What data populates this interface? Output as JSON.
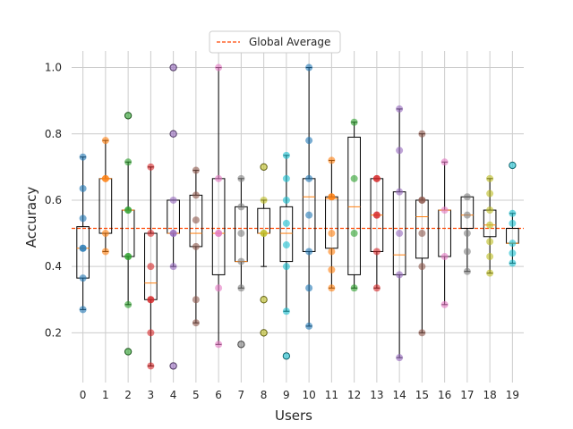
{
  "chart_data": {
    "type": "box+strip",
    "xlabel": "Users",
    "ylabel": "Accuracy",
    "categories": [
      "0",
      "1",
      "2",
      "3",
      "4",
      "5",
      "6",
      "7",
      "8",
      "9",
      "10",
      "11",
      "12",
      "13",
      "14",
      "15",
      "16",
      "17",
      "18",
      "19"
    ],
    "yticks": [
      "0.2",
      "0.4",
      "0.6",
      "0.8",
      "1.0"
    ],
    "ylim": [
      0.05,
      1.05
    ],
    "grid": true,
    "legend": {
      "position": "top-center",
      "entries": [
        "Global Average"
      ]
    },
    "reference_line": {
      "name": "Global Average",
      "value": 0.515,
      "color": "#ff4500",
      "style": "dashed"
    },
    "palette": [
      "#1f77b4",
      "#ff7f0e",
      "#2ca02c",
      "#d62728",
      "#9467bd",
      "#8c564b",
      "#e377c2",
      "#7f7f7f",
      "#bcbd22",
      "#17becf"
    ],
    "boxes": [
      {
        "q1": 0.365,
        "median": 0.455,
        "q3": 0.52,
        "lo": 0.27,
        "hi": 0.73,
        "outliers": []
      },
      {
        "q1": 0.5,
        "median": 0.665,
        "q3": 0.665,
        "lo": 0.445,
        "hi": 0.78,
        "outliers": []
      },
      {
        "q1": 0.43,
        "median": 0.57,
        "q3": 0.57,
        "lo": 0.285,
        "hi": 0.715,
        "outliers": [
          0.855,
          0.143
        ]
      },
      {
        "q1": 0.3,
        "median": 0.35,
        "q3": 0.5,
        "lo": 0.1,
        "hi": 0.7,
        "outliers": []
      },
      {
        "q1": 0.5,
        "median": 0.5,
        "q3": 0.6,
        "lo": 0.4,
        "hi": 0.6,
        "outliers": [
          1.0,
          0.8,
          0.1
        ]
      },
      {
        "q1": 0.46,
        "median": 0.5,
        "q3": 0.615,
        "lo": 0.23,
        "hi": 0.69,
        "outliers": []
      },
      {
        "q1": 0.375,
        "median": 0.5,
        "q3": 0.665,
        "lo": 0.165,
        "hi": 1.0,
        "outliers": []
      },
      {
        "q1": 0.415,
        "median": 0.415,
        "q3": 0.58,
        "lo": 0.335,
        "hi": 0.665,
        "outliers": [
          0.165
        ]
      },
      {
        "q1": 0.5,
        "median": 0.5,
        "q3": 0.575,
        "lo": 0.4,
        "hi": 0.6,
        "outliers": [
          0.7,
          0.3,
          0.2
        ]
      },
      {
        "q1": 0.415,
        "median": 0.5,
        "q3": 0.58,
        "lo": 0.265,
        "hi": 0.735,
        "outliers": [
          0.13
        ]
      },
      {
        "q1": 0.445,
        "median": 0.61,
        "q3": 0.665,
        "lo": 0.22,
        "hi": 1.0,
        "outliers": []
      },
      {
        "q1": 0.455,
        "median": 0.605,
        "q3": 0.61,
        "lo": 0.335,
        "hi": 0.72,
        "outliers": []
      },
      {
        "q1": 0.375,
        "median": 0.58,
        "q3": 0.79,
        "lo": 0.335,
        "hi": 0.835,
        "outliers": []
      },
      {
        "q1": 0.445,
        "median": 0.555,
        "q3": 0.665,
        "lo": 0.335,
        "hi": 0.665,
        "outliers": []
      },
      {
        "q1": 0.375,
        "median": 0.435,
        "q3": 0.625,
        "lo": 0.125,
        "hi": 0.875,
        "outliers": []
      },
      {
        "q1": 0.425,
        "median": 0.55,
        "q3": 0.6,
        "lo": 0.2,
        "hi": 0.8,
        "outliers": []
      },
      {
        "q1": 0.43,
        "median": 0.57,
        "q3": 0.57,
        "lo": 0.285,
        "hi": 0.715,
        "outliers": []
      },
      {
        "q1": 0.515,
        "median": 0.555,
        "q3": 0.61,
        "lo": 0.385,
        "hi": 0.61,
        "outliers": []
      },
      {
        "q1": 0.49,
        "median": 0.525,
        "q3": 0.57,
        "lo": 0.38,
        "hi": 0.665,
        "outliers": []
      },
      {
        "q1": 0.47,
        "median": 0.47,
        "q3": 0.515,
        "lo": 0.41,
        "hi": 0.56,
        "outliers": [
          0.705
        ]
      }
    ],
    "points": [
      [
        0.73,
        0.635,
        0.545,
        0.455,
        0.455,
        0.365,
        0.27
      ],
      [
        0.78,
        0.665,
        0.665,
        0.445,
        0.5
      ],
      [
        0.715,
        0.57,
        0.57,
        0.43,
        0.43,
        0.285,
        0.855,
        0.143
      ],
      [
        0.7,
        0.5,
        0.4,
        0.3,
        0.3,
        0.2,
        0.1
      ],
      [
        0.6,
        0.5,
        0.5,
        0.4,
        1.0,
        0.8,
        0.1
      ],
      [
        0.69,
        0.615,
        0.54,
        0.46,
        0.3,
        0.23
      ],
      [
        1.0,
        0.665,
        0.5,
        0.5,
        0.335,
        0.165
      ],
      [
        0.665,
        0.58,
        0.5,
        0.415,
        0.335,
        0.165
      ],
      [
        0.6,
        0.5,
        0.5,
        0.7,
        0.3,
        0.2
      ],
      [
        0.735,
        0.665,
        0.6,
        0.53,
        0.465,
        0.4,
        0.265,
        0.13
      ],
      [
        1.0,
        0.78,
        0.665,
        0.555,
        0.445,
        0.335,
        0.22
      ],
      [
        0.72,
        0.61,
        0.61,
        0.5,
        0.445,
        0.39,
        0.335
      ],
      [
        0.835,
        0.665,
        0.5,
        0.335
      ],
      [
        0.665,
        0.665,
        0.555,
        0.555,
        0.445,
        0.335
      ],
      [
        0.875,
        0.75,
        0.625,
        0.5,
        0.375,
        0.125
      ],
      [
        0.8,
        0.6,
        0.6,
        0.5,
        0.4,
        0.2
      ],
      [
        0.715,
        0.57,
        0.43,
        0.285
      ],
      [
        0.61,
        0.555,
        0.5,
        0.445,
        0.385
      ],
      [
        0.665,
        0.62,
        0.57,
        0.525,
        0.475,
        0.43,
        0.38
      ],
      [
        0.56,
        0.53,
        0.47,
        0.44,
        0.41,
        0.705
      ]
    ]
  }
}
